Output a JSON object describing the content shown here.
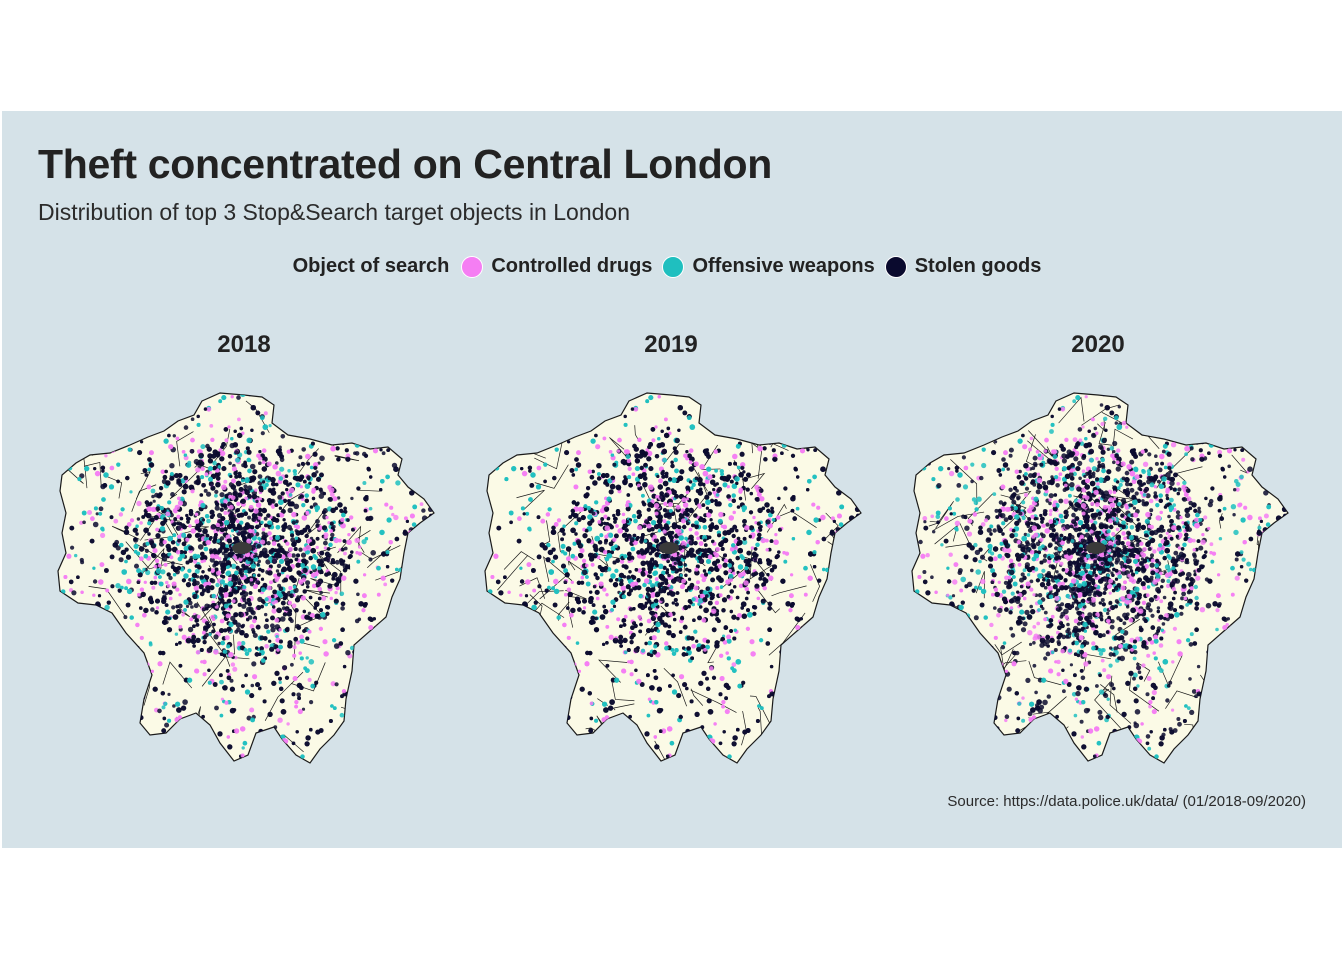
{
  "title": "Theft concentrated on Central London",
  "subtitle": "Distribution of top 3 Stop&Search target objects in London",
  "legend": {
    "title": "Object of search",
    "items": [
      {
        "label": "Controlled drugs",
        "color": "#f57ef3"
      },
      {
        "label": "Offensive weapons",
        "color": "#1fbfbf"
      },
      {
        "label": "Stolen goods",
        "color": "#0a0a2e"
      }
    ]
  },
  "panels": [
    {
      "year": "2018"
    },
    {
      "year": "2019"
    },
    {
      "year": "2020"
    }
  ],
  "map_colors": {
    "land": "#fbfae6",
    "border": "#1a1a1a",
    "background": "#d5e2e8"
  },
  "caption": "Source: https://data.police.uk/data/ (01/2018-09/2020)"
}
